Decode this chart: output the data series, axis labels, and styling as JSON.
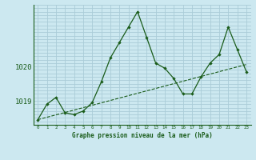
{
  "title": "Graphe pression niveau de la mer (hPa)",
  "background_color": "#cce8f0",
  "line_color": "#1a5c1a",
  "grid_color": "#aaccd8",
  "x_values": [
    0,
    1,
    2,
    3,
    4,
    5,
    6,
    7,
    8,
    9,
    10,
    11,
    12,
    13,
    14,
    15,
    16,
    17,
    18,
    19,
    20,
    21,
    22,
    23
  ],
  "y_main": [
    1018.45,
    1018.9,
    1019.1,
    1018.65,
    1018.6,
    1018.7,
    1018.95,
    1019.55,
    1020.25,
    1020.7,
    1021.15,
    1021.6,
    1020.85,
    1020.1,
    1019.95,
    1019.65,
    1019.2,
    1019.2,
    1019.7,
    1020.1,
    1020.35,
    1021.15,
    1020.5,
    1019.85
  ],
  "y_trend": [
    1018.45,
    1018.52,
    1018.59,
    1018.66,
    1018.73,
    1018.8,
    1018.87,
    1018.94,
    1019.01,
    1019.08,
    1019.15,
    1019.22,
    1019.29,
    1019.36,
    1019.43,
    1019.5,
    1019.57,
    1019.64,
    1019.71,
    1019.78,
    1019.85,
    1019.92,
    1019.99,
    1020.06
  ],
  "ylim": [
    1018.3,
    1021.8
  ],
  "yticks": [
    1019,
    1020
  ],
  "xlim": [
    -0.5,
    23.5
  ],
  "figwidth": 3.2,
  "figheight": 2.0,
  "dpi": 100
}
